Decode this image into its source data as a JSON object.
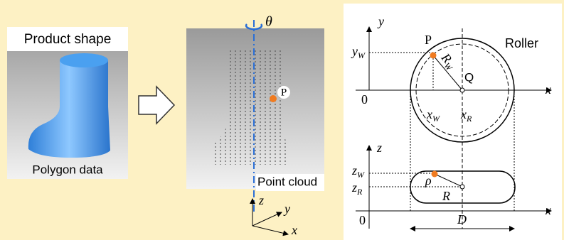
{
  "left": {
    "title": "Product shape",
    "caption": "Polygon data"
  },
  "middle": {
    "rotation": "θ",
    "point": "P",
    "caption": "Point cloud",
    "axes": {
      "z": "z",
      "y": "y",
      "x": "x"
    }
  },
  "right": {
    "upper": {
      "y_axis": "y",
      "x_axis": "x",
      "origin": "0",
      "point": "P",
      "center": "Q",
      "roller": "Roller",
      "radius": {
        "main": "R",
        "sub": "W"
      },
      "y_w": {
        "main": "y",
        "sub": "W"
      },
      "x_w": {
        "main": "x",
        "sub": "W"
      },
      "x_r": {
        "main": "x",
        "sub": "R"
      }
    },
    "lower": {
      "z_axis": "z",
      "x_axis": "x",
      "origin": "0",
      "rho": "ρ",
      "radius": "R",
      "diameter": "D",
      "z_w": {
        "main": "z",
        "sub": "W"
      },
      "z_r": {
        "main": "z",
        "sub": "R"
      }
    }
  }
}
